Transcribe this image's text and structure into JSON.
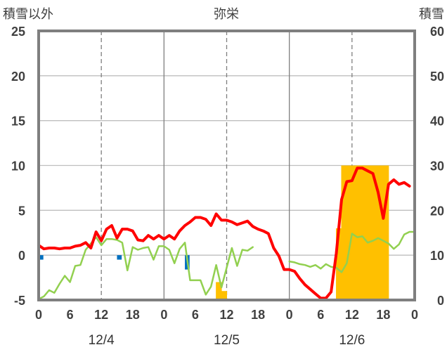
{
  "chart_data": {
    "type": "line",
    "title": "弥栄",
    "left_axis": {
      "label": "積雪以外",
      "min": -5,
      "max": 25,
      "ticks": [
        "-5",
        "0",
        "5",
        "10",
        "15",
        "20",
        "25"
      ]
    },
    "right_axis": {
      "label": "積雪",
      "min": 0,
      "max": 60,
      "ticks": [
        "0",
        "10",
        "20",
        "30",
        "40",
        "50",
        "60"
      ]
    },
    "x_hour_min": 0,
    "x_hour_max": 72,
    "x_tick_labels": [
      "0",
      "6",
      "12",
      "18",
      "0",
      "6",
      "12",
      "18",
      "0",
      "6",
      "12",
      "18",
      "0"
    ],
    "x_date_labels": [
      {
        "hour": 12,
        "text": "12/4"
      },
      {
        "hour": 36,
        "text": "12/5"
      },
      {
        "hour": 60,
        "text": "12/6"
      }
    ],
    "grid": true,
    "colors": {
      "red_series": "#ff0000",
      "green_series": "#92d050",
      "orange_bars": "#ffc000",
      "blue_bars": "#0070c0",
      "purple_series": "#7030a0",
      "frame": "#7f7f7f"
    },
    "series": [
      {
        "values": [
          [
            0,
            1.1
          ],
          [
            1,
            0.7
          ],
          [
            2,
            0.8
          ],
          [
            3,
            0.8
          ],
          [
            4,
            0.7
          ],
          [
            5,
            0.8
          ],
          [
            6,
            0.8
          ],
          [
            7,
            1.0
          ],
          [
            8,
            1.1
          ],
          [
            9,
            1.4
          ],
          [
            10,
            0.8
          ],
          [
            11,
            2.6
          ],
          [
            12,
            1.6
          ],
          [
            13,
            2.9
          ],
          [
            14,
            3.3
          ],
          [
            15,
            1.9
          ],
          [
            16,
            2.9
          ],
          [
            17,
            2.9
          ],
          [
            18,
            2.7
          ],
          [
            19,
            1.7
          ],
          [
            20,
            1.6
          ],
          [
            21,
            2.2
          ],
          [
            22,
            1.8
          ],
          [
            23,
            2.2
          ],
          [
            24,
            1.8
          ],
          [
            25,
            2.2
          ],
          [
            26,
            1.8
          ],
          [
            27,
            2.7
          ],
          [
            28,
            3.3
          ],
          [
            29,
            3.7
          ],
          [
            30,
            4.2
          ],
          [
            31,
            4.2
          ],
          [
            32,
            4.0
          ],
          [
            33,
            3.3
          ],
          [
            34,
            4.6
          ],
          [
            35,
            3.9
          ],
          [
            36,
            3.9
          ],
          [
            37,
            3.7
          ],
          [
            38,
            3.4
          ],
          [
            39,
            3.6
          ],
          [
            40,
            3.8
          ],
          [
            41,
            3.2
          ],
          [
            42,
            2.9
          ],
          [
            43,
            2.7
          ],
          [
            44,
            2.4
          ],
          [
            45,
            0.8
          ],
          [
            46,
            -0.1
          ],
          [
            47,
            -1.6
          ],
          [
            48,
            -1.6
          ],
          [
            49,
            -1.8
          ],
          [
            50,
            -2.6
          ],
          [
            51,
            -3.3
          ],
          [
            52,
            -3.8
          ],
          [
            53,
            -4.3
          ],
          [
            54,
            -4.8
          ],
          [
            55,
            -4.8
          ],
          [
            56,
            -4.1
          ],
          [
            57,
            0.2
          ],
          [
            58,
            6.2
          ],
          [
            59,
            8.2
          ],
          [
            60,
            8.3
          ],
          [
            61,
            9.7
          ],
          [
            62,
            9.7
          ],
          [
            63,
            9.4
          ],
          [
            64,
            9.1
          ],
          [
            65,
            7.0
          ],
          [
            66,
            4.1
          ],
          [
            67,
            7.9
          ],
          [
            68,
            8.4
          ],
          [
            69,
            7.9
          ],
          [
            70,
            8.1
          ],
          [
            71,
            7.7
          ]
        ]
      },
      {
        "values": [
          [
            0,
            -4.9
          ],
          [
            1,
            -4.6
          ],
          [
            2,
            -3.9
          ],
          [
            3,
            -4.2
          ],
          [
            4,
            -3.2
          ],
          [
            5,
            -2.3
          ],
          [
            6,
            -3.0
          ],
          [
            7,
            -1.2
          ],
          [
            8,
            -1.1
          ],
          [
            9,
            0.6
          ],
          [
            10,
            1.3
          ],
          [
            11,
            2.0
          ],
          [
            12,
            1.1
          ],
          [
            13,
            1.8
          ],
          [
            14,
            1.8
          ],
          [
            15,
            1.7
          ],
          [
            16,
            1.4
          ],
          [
            17,
            -1.7
          ],
          [
            18,
            0.9
          ],
          [
            19,
            0.6
          ],
          [
            20,
            0.8
          ],
          [
            21,
            0.9
          ],
          [
            22,
            -0.5
          ],
          [
            23,
            1.0
          ],
          [
            24,
            1.0
          ],
          [
            25,
            0.6
          ],
          [
            26,
            -0.9
          ],
          [
            27,
            0.7
          ],
          [
            28,
            1.4
          ],
          [
            29,
            -2.8
          ],
          [
            30,
            -2.8
          ],
          [
            31,
            -2.8
          ],
          [
            32,
            -4.4
          ],
          [
            33,
            -3.5
          ],
          [
            34,
            -1.1
          ],
          [
            35,
            -3.6
          ],
          [
            36,
            -1.4
          ],
          [
            37,
            0.8
          ],
          [
            38,
            -1.2
          ],
          [
            39,
            0.6
          ],
          [
            40,
            0.5
          ],
          [
            41,
            0.9
          ],
          [
            48,
            -0.7
          ],
          [
            49,
            -0.8
          ],
          [
            50,
            -1.0
          ],
          [
            51,
            -1.1
          ],
          [
            52,
            -1.3
          ],
          [
            53,
            -1.1
          ],
          [
            54,
            -1.5
          ],
          [
            55,
            -1.0
          ],
          [
            56,
            -1.3
          ],
          [
            57,
            -1.4
          ],
          [
            58,
            -1.9
          ],
          [
            59,
            -0.9
          ],
          [
            60,
            2.4
          ],
          [
            61,
            2.0
          ],
          [
            62,
            2.1
          ],
          [
            63,
            1.4
          ],
          [
            64,
            1.6
          ],
          [
            65,
            1.9
          ],
          [
            66,
            1.6
          ],
          [
            67,
            1.3
          ],
          [
            68,
            0.7
          ],
          [
            69,
            1.2
          ],
          [
            70,
            2.3
          ],
          [
            71,
            2.6
          ],
          [
            72,
            2.6
          ]
        ]
      },
      {
        "values": [
          [
            0,
            -5
          ],
          [
            72,
            -5
          ]
        ]
      }
    ],
    "bars_orange_snow_depth": [
      [
        34,
        4
      ],
      [
        35,
        2
      ],
      [
        57,
        16
      ],
      [
        58,
        30
      ],
      [
        59,
        30
      ],
      [
        60,
        30
      ],
      [
        61,
        30
      ],
      [
        62,
        30
      ],
      [
        63,
        30
      ],
      [
        64,
        30
      ],
      [
        65,
        30
      ],
      [
        66,
        30
      ]
    ],
    "bars_blue_left_axis": [
      [
        0,
        -0.5
      ],
      [
        15,
        -0.5
      ],
      [
        28,
        -1.6
      ]
    ]
  }
}
